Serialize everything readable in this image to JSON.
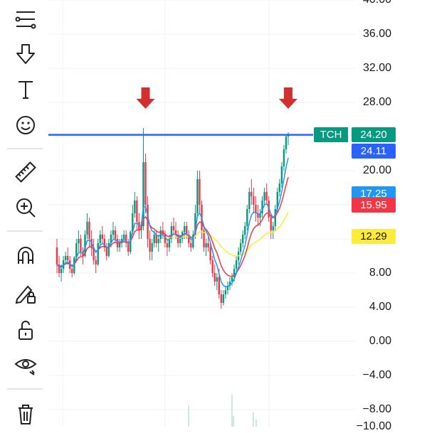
{
  "toolbar": {
    "tools": [
      {
        "name": "trend-lines-icon"
      },
      {
        "name": "arrow-down-icon"
      },
      {
        "name": "text-icon"
      },
      {
        "name": "emoji-icon"
      },
      {
        "name": "ruler-icon"
      },
      {
        "name": "zoom-in-icon"
      },
      {
        "name": "magnet-icon"
      },
      {
        "name": "lock-drawing-icon"
      },
      {
        "name": "unlock-icon"
      },
      {
        "name": "eye-icon"
      },
      {
        "name": "trash-icon"
      }
    ]
  },
  "chart_data": {
    "type": "candlestick",
    "symbol": "TCH",
    "ylim": [
      -10,
      40
    ],
    "y_ticks": [
      "40.00",
      "36.00",
      "32.00",
      "28.00",
      "20.00",
      "8.00",
      "4.00",
      "0.00",
      "−4.00",
      "−8.00",
      "−10.00"
    ],
    "horizontal_line": {
      "value": 24.2,
      "color": "#2962ff"
    },
    "price_labels": [
      {
        "text": "TCH",
        "value": 24.2,
        "color": "#089981",
        "kind": "symbol"
      },
      {
        "text": "24.20",
        "value": 24.2,
        "color": "#089981"
      },
      {
        "text": "24.11",
        "value": 24.11,
        "color": "#2962ff"
      },
      {
        "text": "17.25",
        "value": 17.25,
        "color": "#2196f3"
      },
      {
        "text": "15.95",
        "value": 15.95,
        "color": "#f23645"
      },
      {
        "text": "12.29",
        "value": 12.29,
        "color": "#ffeb3b",
        "text_color": "#1a1a1a"
      }
    ],
    "annotations": [
      {
        "type": "arrow-down",
        "color": "#d32f2f",
        "bar": 40
      },
      {
        "type": "arrow-down",
        "color": "#d32f2f",
        "bar": 106
      }
    ],
    "colors": {
      "up": "#089981",
      "down": "#f23645",
      "ma_fast": "#2196f3",
      "ma_mid": "#f23645",
      "ma_slow": "#ffeb3b"
    },
    "candles": [
      [
        11,
        12,
        8,
        9
      ],
      [
        9,
        10,
        7.5,
        8
      ],
      [
        8,
        9,
        7,
        8.5
      ],
      [
        8.5,
        10,
        8,
        9.5
      ],
      [
        9.5,
        10.5,
        9,
        10
      ],
      [
        10,
        11,
        9,
        9.5
      ],
      [
        9.5,
        10,
        8,
        8.5
      ],
      [
        8.5,
        9,
        7.5,
        8
      ],
      [
        8,
        10,
        7.8,
        9.8
      ],
      [
        9.8,
        12,
        9.5,
        11.5
      ],
      [
        11.5,
        13,
        10.5,
        12
      ],
      [
        12,
        12.5,
        10,
        10.5
      ],
      [
        10.5,
        11,
        9,
        10
      ],
      [
        10,
        13,
        9.8,
        12.5
      ],
      [
        12.5,
        15,
        12,
        14
      ],
      [
        14,
        14.5,
        11,
        12
      ],
      [
        12,
        13,
        10,
        11
      ],
      [
        11,
        12,
        9,
        9.5
      ],
      [
        9.5,
        10,
        8,
        9
      ],
      [
        9,
        12,
        8.8,
        11.5
      ],
      [
        11.5,
        13,
        11,
        12.5
      ],
      [
        12.5,
        13.5,
        11.5,
        12
      ],
      [
        12,
        12.5,
        10.5,
        11
      ],
      [
        11,
        11.5,
        9.5,
        10
      ],
      [
        10,
        12,
        9.8,
        11.5
      ],
      [
        11.5,
        13,
        11,
        12.5
      ],
      [
        12.5,
        14,
        12,
        13
      ],
      [
        13,
        13.5,
        11.5,
        12
      ],
      [
        12,
        12.5,
        10.5,
        11
      ],
      [
        11,
        12,
        10.5,
        11.5
      ],
      [
        11.5,
        12.5,
        11,
        12
      ],
      [
        12,
        13,
        11.5,
        12.5
      ],
      [
        12.5,
        13,
        11,
        11.5
      ],
      [
        11.5,
        12,
        10,
        10.5
      ],
      [
        10.5,
        13,
        10.2,
        12.8
      ],
      [
        12.8,
        16,
        12.5,
        15
      ],
      [
        15,
        17.5,
        14.5,
        16.5
      ],
      [
        16.5,
        17,
        13,
        14
      ],
      [
        14,
        15,
        12,
        13
      ],
      [
        13,
        14,
        12,
        13.5
      ],
      [
        13.5,
        25,
        13,
        21
      ],
      [
        21,
        22,
        15,
        16
      ],
      [
        16,
        17,
        11,
        12
      ],
      [
        12,
        13,
        9.5,
        10.5
      ],
      [
        10.5,
        12,
        9.5,
        11.5
      ],
      [
        11.5,
        13,
        11,
        12.5
      ],
      [
        12.5,
        13,
        11,
        11.5
      ],
      [
        11.5,
        12.5,
        10.5,
        12
      ],
      [
        12,
        13.5,
        11.5,
        13
      ],
      [
        13,
        14,
        12,
        12.5
      ],
      [
        12.5,
        13,
        11,
        11.5
      ],
      [
        11.5,
        12,
        10,
        11
      ],
      [
        11,
        12.5,
        10.5,
        12
      ],
      [
        12,
        14,
        11.5,
        13.5
      ],
      [
        13.5,
        14.5,
        12.5,
        13
      ],
      [
        13,
        14,
        12,
        12.5
      ],
      [
        12.5,
        13,
        11,
        11.5
      ],
      [
        11.5,
        12.5,
        11,
        12
      ],
      [
        12,
        13,
        11.5,
        12.8
      ],
      [
        12.8,
        14,
        12,
        13.5
      ],
      [
        13.5,
        14,
        12,
        12.5
      ],
      [
        12.5,
        13,
        11,
        11.5
      ],
      [
        11.5,
        12,
        10.5,
        11
      ],
      [
        11,
        13,
        10.8,
        12.5
      ],
      [
        12.5,
        16,
        12,
        15
      ],
      [
        15,
        20,
        14.5,
        19
      ],
      [
        19,
        20,
        15,
        16
      ],
      [
        16,
        16.5,
        12,
        13
      ],
      [
        13,
        13.5,
        10.5,
        11
      ],
      [
        11,
        12,
        10,
        11.5
      ],
      [
        11.5,
        12.5,
        10.5,
        11
      ],
      [
        11,
        11.5,
        9,
        9.5
      ],
      [
        9.5,
        10,
        7.5,
        8
      ],
      [
        8,
        9,
        6.5,
        7
      ],
      [
        7,
        8,
        6,
        7.5
      ],
      [
        7.5,
        8.5,
        5,
        5.5
      ],
      [
        5.5,
        6,
        3.8,
        4.5
      ],
      [
        4.5,
        6,
        4.2,
        5.5
      ],
      [
        5.5,
        6.5,
        5,
        6
      ],
      [
        6,
        7,
        5.5,
        6.5
      ],
      [
        6.5,
        7.5,
        6,
        7
      ],
      [
        7,
        8,
        6.5,
        7.5
      ],
      [
        7.5,
        9,
        7,
        8.5
      ],
      [
        8.5,
        10,
        8,
        9.5
      ],
      [
        9.5,
        11,
        9,
        10.5
      ],
      [
        10.5,
        12,
        10,
        11.5
      ],
      [
        11.5,
        13,
        11,
        12.5
      ],
      [
        12.5,
        14,
        12,
        13.5
      ],
      [
        13.5,
        16,
        13,
        15.5
      ],
      [
        15.5,
        18,
        15,
        17.5
      ],
      [
        17.5,
        19,
        16,
        17
      ],
      [
        17,
        18,
        15,
        16
      ],
      [
        16,
        17,
        14,
        15
      ],
      [
        15,
        16,
        13.5,
        14.5
      ],
      [
        14.5,
        15.5,
        13.5,
        15
      ],
      [
        15,
        17,
        14.5,
        16.5
      ],
      [
        16.5,
        18,
        16,
        17.5
      ],
      [
        17.5,
        18.5,
        16,
        16.5
      ],
      [
        16.5,
        17,
        14,
        14.5
      ],
      [
        14.5,
        15,
        12,
        13
      ],
      [
        13,
        14,
        12,
        13.5
      ],
      [
        13.5,
        16,
        13,
        15.5
      ],
      [
        15.5,
        18,
        15,
        17.5
      ],
      [
        17.5,
        19,
        17,
        18.5
      ],
      [
        18.5,
        21,
        18,
        20.5
      ],
      [
        20.5,
        23,
        20,
        22.5
      ],
      [
        22.5,
        24.2,
        22,
        24
      ],
      [
        24,
        24.5,
        23,
        24.2
      ]
    ]
  }
}
